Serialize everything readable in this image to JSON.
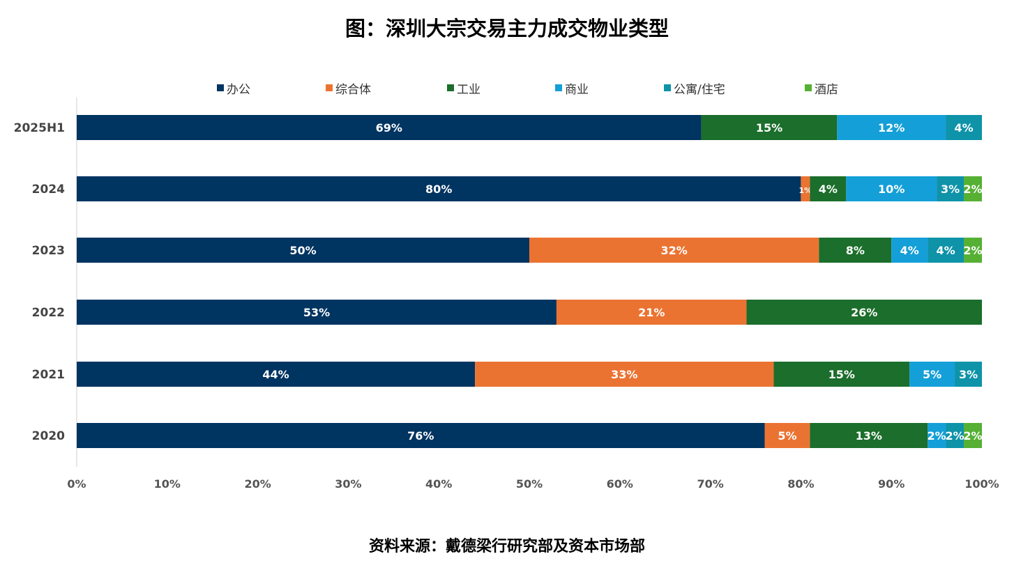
{
  "chart_data": {
    "type": "bar",
    "orientation": "horizontal",
    "stacked": true,
    "title": "图：深圳大宗交易主力成交物业类型",
    "source": "资料来源：戴德梁行研究部及资本市场部",
    "categories": [
      "2025H1",
      "2024",
      "2023",
      "2022",
      "2021",
      "2020"
    ],
    "xlim": [
      0,
      100
    ],
    "x_ticks": [
      "0%",
      "10%",
      "20%",
      "30%",
      "40%",
      "50%",
      "60%",
      "70%",
      "80%",
      "90%",
      "100%"
    ],
    "legend_position": "top",
    "grid": false,
    "series": [
      {
        "name": "办公",
        "color": "#003461",
        "values": [
          69,
          80,
          50,
          53,
          44,
          76
        ],
        "labels": [
          "69%",
          "80%",
          "50%",
          "53%",
          "44%",
          "76%"
        ]
      },
      {
        "name": "综合体",
        "color": "#eb7332",
        "values": [
          0,
          1,
          32,
          21,
          33,
          5
        ],
        "labels": [
          "",
          "1%",
          "32%",
          "21%",
          "33%",
          "5%"
        ]
      },
      {
        "name": "工业",
        "color": "#1b6e2b",
        "values": [
          15,
          4,
          8,
          26,
          15,
          13
        ],
        "labels": [
          "15%",
          "4%",
          "8%",
          "26%",
          "15%",
          "13%"
        ]
      },
      {
        "name": "商业",
        "color": "#149fd8",
        "values": [
          12,
          10,
          4,
          0,
          5,
          2
        ],
        "labels": [
          "12%",
          "10%",
          "4%",
          "",
          "5%",
          "2%"
        ]
      },
      {
        "name": "公寓/住宅",
        "color": "#0e93a9",
        "values": [
          4,
          3,
          4,
          0,
          3,
          2
        ],
        "labels": [
          "4%",
          "3%",
          "4%",
          "",
          "3%",
          "2%"
        ]
      },
      {
        "name": "酒店",
        "color": "#55b033",
        "values": [
          0,
          2,
          2,
          0,
          0,
          2
        ],
        "labels": [
          "",
          "2%",
          "2%",
          "",
          "",
          "2%"
        ]
      }
    ]
  }
}
